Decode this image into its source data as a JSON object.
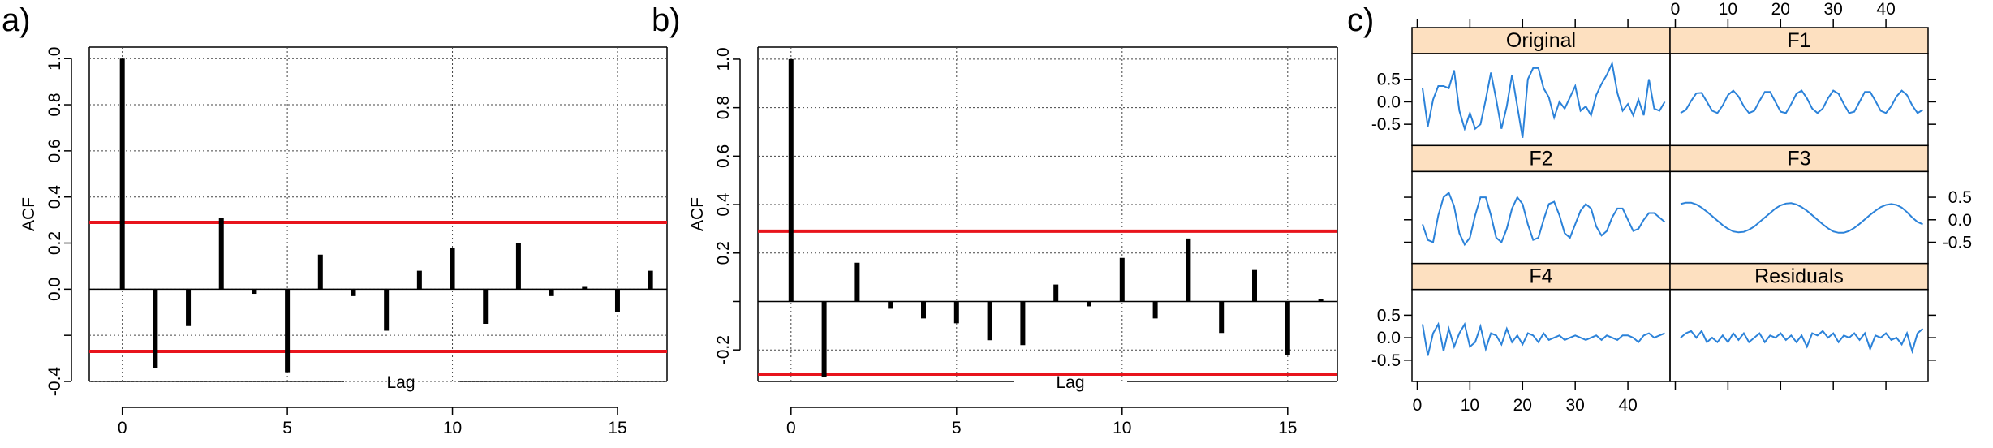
{
  "panels": [
    {
      "label": "a)"
    },
    {
      "label": "b)"
    },
    {
      "label": "c)"
    }
  ],
  "chart_data": [
    {
      "type": "bar",
      "subtype": "acf",
      "xlabel": "Lag",
      "ylabel": "ACF",
      "x": [
        0,
        1,
        2,
        3,
        4,
        5,
        6,
        7,
        8,
        9,
        10,
        11,
        12,
        13,
        14,
        15,
        16
      ],
      "values": [
        1.0,
        -0.34,
        -0.16,
        0.31,
        -0.02,
        -0.36,
        0.15,
        -0.03,
        -0.18,
        0.08,
        0.18,
        -0.15,
        0.2,
        -0.03,
        0.01,
        -0.1,
        0.08
      ],
      "conf_limits": [
        0.29,
        -0.27
      ],
      "conf_color": "#e8141c",
      "xlim": [
        -1,
        16.5
      ],
      "ylim": [
        -0.4,
        1.05
      ],
      "x_ticks": [
        0,
        5,
        10,
        15
      ],
      "y_ticks": [
        -0.4,
        -0.2,
        0.0,
        0.2,
        0.4,
        0.6,
        0.8,
        1.0
      ],
      "y_tick_labels": [
        "-0.4",
        "",
        "0.0",
        "0.2",
        "0.4",
        "0.6",
        "0.8",
        "1.0"
      ],
      "grid": true
    },
    {
      "type": "bar",
      "subtype": "acf",
      "xlabel": "Lag",
      "ylabel": "ACF",
      "x": [
        0,
        1,
        2,
        3,
        4,
        5,
        6,
        7,
        8,
        9,
        10,
        11,
        12,
        13,
        14,
        15,
        16
      ],
      "values": [
        1.0,
        -0.31,
        0.16,
        -0.03,
        -0.07,
        -0.09,
        -0.16,
        -0.18,
        0.07,
        -0.02,
        0.18,
        -0.07,
        0.26,
        -0.13,
        0.13,
        -0.22,
        0.01
      ],
      "conf_limits": [
        0.29,
        -0.3
      ],
      "conf_color": "#e8141c",
      "xlim": [
        -1,
        16.5
      ],
      "ylim": [
        -0.33,
        1.05
      ],
      "x_ticks": [
        0,
        5,
        10,
        15
      ],
      "y_ticks": [
        -0.2,
        0.0,
        0.2,
        0.4,
        0.6,
        0.8,
        1.0
      ],
      "y_tick_labels": [
        "-0.2",
        "",
        "0.2",
        "0.4",
        "0.6",
        "0.8",
        "1.0"
      ],
      "grid": true
    },
    {
      "type": "line",
      "subtype": "trellis",
      "line_color": "#2b82d9",
      "strip_color": "#fde0c0",
      "xlim": [
        -1,
        48
      ],
      "ylim": [
        -0.9,
        1.0
      ],
      "x_ticks": [
        0,
        10,
        20,
        30,
        40
      ],
      "y_ticks": [
        -0.5,
        0.0,
        0.5
      ],
      "series": [
        {
          "name": "Original",
          "values": [
            0.3,
            -0.55,
            0.05,
            0.35,
            0.35,
            0.3,
            0.7,
            -0.2,
            -0.6,
            -0.25,
            -0.6,
            -0.5,
            0.05,
            0.65,
            0.05,
            -0.6,
            -0.1,
            0.6,
            -0.1,
            -0.8,
            0.5,
            0.75,
            0.75,
            0.3,
            0.1,
            -0.35,
            0.0,
            -0.15,
            0.1,
            0.35,
            -0.2,
            -0.1,
            -0.3,
            0.15,
            0.4,
            0.6,
            0.85,
            0.2,
            -0.2,
            -0.05,
            -0.3,
            0.05,
            -0.3,
            0.5,
            -0.15,
            -0.2,
            0.0
          ]
        },
        {
          "name": "F1",
          "values": [
            -0.25,
            -0.18,
            0.02,
            0.19,
            0.2,
            0.0,
            -0.2,
            -0.25,
            -0.08,
            0.15,
            0.25,
            0.12,
            -0.1,
            -0.25,
            -0.2,
            0.02,
            0.22,
            0.22,
            0.0,
            -0.22,
            -0.25,
            -0.05,
            0.18,
            0.25,
            0.08,
            -0.15,
            -0.25,
            -0.15,
            0.08,
            0.25,
            0.18,
            -0.05,
            -0.25,
            -0.22,
            0.0,
            0.22,
            0.22,
            0.02,
            -0.2,
            -0.25,
            -0.1,
            0.12,
            0.25,
            0.15,
            -0.08,
            -0.25,
            -0.18
          ]
        },
        {
          "name": "F2",
          "values": [
            -0.1,
            -0.45,
            -0.5,
            0.1,
            0.5,
            0.6,
            0.3,
            -0.3,
            -0.55,
            -0.4,
            0.1,
            0.5,
            0.5,
            0.1,
            -0.4,
            -0.5,
            -0.2,
            0.25,
            0.5,
            0.35,
            -0.1,
            -0.45,
            -0.4,
            0.0,
            0.35,
            0.4,
            0.1,
            -0.3,
            -0.4,
            -0.1,
            0.2,
            0.35,
            0.25,
            -0.15,
            -0.35,
            -0.25,
            0.05,
            0.25,
            0.25,
            0.0,
            -0.25,
            -0.2,
            0.0,
            0.15,
            0.15,
            0.05,
            -0.05
          ]
        },
        {
          "name": "F3",
          "values": [
            0.35,
            0.38,
            0.38,
            0.34,
            0.27,
            0.18,
            0.08,
            -0.02,
            -0.12,
            -0.2,
            -0.26,
            -0.28,
            -0.27,
            -0.22,
            -0.15,
            -0.05,
            0.05,
            0.15,
            0.25,
            0.32,
            0.36,
            0.37,
            0.34,
            0.28,
            0.2,
            0.1,
            0.0,
            -0.1,
            -0.19,
            -0.26,
            -0.29,
            -0.29,
            -0.25,
            -0.18,
            -0.09,
            0.01,
            0.11,
            0.2,
            0.28,
            0.33,
            0.35,
            0.33,
            0.27,
            0.17,
            0.05,
            -0.05,
            -0.1
          ]
        },
        {
          "name": "F4",
          "values": [
            0.3,
            -0.4,
            0.1,
            0.3,
            -0.3,
            0.2,
            -0.2,
            0.1,
            0.3,
            -0.2,
            -0.1,
            0.25,
            -0.25,
            0.1,
            0.05,
            -0.15,
            0.2,
            -0.1,
            0.05,
            -0.15,
            0.1,
            0.05,
            -0.1,
            0.1,
            -0.05,
            0.0,
            0.05,
            -0.05,
            0.0,
            0.05,
            0.0,
            -0.05,
            0.0,
            0.05,
            -0.05,
            0.05,
            0.0,
            -0.05,
            0.05,
            0.05,
            0.0,
            -0.1,
            0.05,
            0.1,
            0.0,
            0.05,
            0.1
          ]
        },
        {
          "name": "Residuals",
          "values": [
            0.0,
            0.1,
            0.15,
            0.0,
            0.15,
            -0.1,
            0.0,
            -0.1,
            0.05,
            -0.1,
            0.1,
            -0.05,
            0.1,
            -0.1,
            0.0,
            0.1,
            -0.1,
            0.05,
            0.0,
            0.1,
            -0.05,
            0.05,
            -0.1,
            0.05,
            -0.2,
            0.1,
            0.05,
            0.15,
            0.0,
            0.1,
            -0.1,
            0.05,
            0.0,
            0.1,
            -0.05,
            0.1,
            -0.25,
            0.05,
            0.0,
            0.1,
            -0.05,
            0.0,
            -0.15,
            0.1,
            -0.3,
            0.1,
            0.2
          ]
        }
      ]
    }
  ]
}
